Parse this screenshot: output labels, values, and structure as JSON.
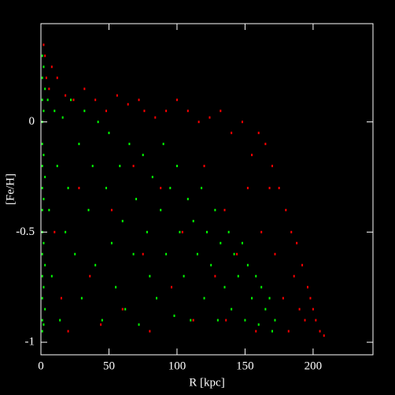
{
  "chart_data": {
    "type": "scatter",
    "x_label": "R [kpc]",
    "y_label": "[Fe/H]",
    "xlim": [
      0,
      244
    ],
    "ylim": [
      -1.057,
      0.446
    ],
    "xticks": [
      0,
      50,
      100,
      150,
      200
    ],
    "yticks": [
      -1,
      -0.5,
      0
    ],
    "series": [
      {
        "name": "red",
        "color": "#ff0000",
        "x": [
          2,
          3,
          4,
          6,
          8,
          10,
          12,
          15,
          18,
          20,
          24,
          28,
          32,
          36,
          40,
          44,
          48,
          52,
          56,
          60,
          64,
          68,
          72,
          75,
          76,
          80,
          84,
          88,
          92,
          96,
          100,
          104,
          108,
          112,
          116,
          120,
          124,
          128,
          132,
          135,
          136,
          140,
          144,
          148,
          152,
          155,
          158,
          160,
          162,
          165,
          168,
          170,
          172,
          175,
          178,
          180,
          182,
          184,
          186,
          188,
          190,
          192,
          194,
          196,
          198,
          200,
          202,
          205,
          208
        ],
        "values": [
          0.35,
          0.3,
          0.2,
          0.15,
          0.25,
          -0.5,
          0.2,
          -0.8,
          0.12,
          -0.95,
          0.1,
          -0.3,
          0.15,
          -0.7,
          0.1,
          -0.92,
          0.05,
          -0.4,
          0.12,
          -0.85,
          0.08,
          -0.2,
          0.1,
          -0.6,
          0.05,
          -0.95,
          0.02,
          -0.3,
          0.05,
          -0.75,
          0.1,
          -0.5,
          0.05,
          -0.9,
          0.0,
          -0.2,
          0.02,
          -0.7,
          0.05,
          -0.4,
          -0.9,
          -0.05,
          -0.6,
          0.0,
          -0.3,
          -0.15,
          -0.95,
          -0.05,
          -0.5,
          -0.1,
          -0.3,
          -0.2,
          -0.6,
          -0.3,
          -0.8,
          -0.4,
          -0.95,
          -0.5,
          -0.7,
          -0.55,
          -0.85,
          -0.65,
          -0.9,
          -0.75,
          -0.8,
          -0.85,
          -0.9,
          -0.95,
          -0.97
        ]
      },
      {
        "name": "green",
        "color": "#00ff00",
        "x": [
          1,
          1,
          1,
          1,
          1,
          1,
          1,
          1,
          1,
          1,
          1,
          1,
          1,
          1,
          2,
          2,
          2,
          2,
          2,
          2,
          2,
          3,
          3,
          3,
          3,
          5,
          6,
          8,
          10,
          12,
          14,
          16,
          18,
          20,
          22,
          25,
          28,
          30,
          32,
          35,
          38,
          40,
          42,
          45,
          48,
          50,
          52,
          55,
          58,
          60,
          62,
          65,
          68,
          70,
          72,
          75,
          78,
          80,
          82,
          85,
          88,
          90,
          92,
          95,
          98,
          100,
          102,
          105,
          108,
          110,
          112,
          115,
          118,
          120,
          122,
          125,
          128,
          130,
          132,
          135,
          138,
          140,
          142,
          145,
          148,
          150,
          152,
          155,
          158,
          160,
          162,
          165,
          168,
          170,
          172
        ],
        "values": [
          0.3,
          0.2,
          0.1,
          0,
          -0.1,
          -0.2,
          -0.3,
          -0.4,
          -0.5,
          -0.6,
          -0.7,
          -0.8,
          -0.9,
          -0.95,
          0.25,
          0.05,
          -0.15,
          -0.35,
          -0.55,
          -0.75,
          -0.92,
          0.15,
          -0.25,
          -0.65,
          -0.85,
          0.1,
          -0.4,
          -0.7,
          0.05,
          -0.2,
          -0.9,
          0.02,
          -0.5,
          -0.3,
          0.1,
          -0.6,
          -0.1,
          -0.8,
          0.05,
          -0.4,
          -0.2,
          -0.65,
          0.0,
          -0.9,
          -0.3,
          -0.05,
          -0.55,
          -0.75,
          -0.2,
          -0.45,
          -0.85,
          -0.1,
          -0.6,
          -0.35,
          -0.92,
          -0.15,
          -0.5,
          -0.7,
          -0.25,
          -0.8,
          -0.4,
          -0.1,
          -0.6,
          -0.3,
          -0.88,
          -0.2,
          -0.5,
          -0.7,
          -0.35,
          -0.9,
          -0.45,
          -0.6,
          -0.3,
          -0.8,
          -0.5,
          -0.65,
          -0.4,
          -0.9,
          -0.55,
          -0.75,
          -0.5,
          -0.85,
          -0.6,
          -0.7,
          -0.55,
          -0.9,
          -0.65,
          -0.8,
          -0.7,
          -0.92,
          -0.75,
          -0.85,
          -0.8,
          -0.95,
          -0.9
        ]
      }
    ]
  }
}
